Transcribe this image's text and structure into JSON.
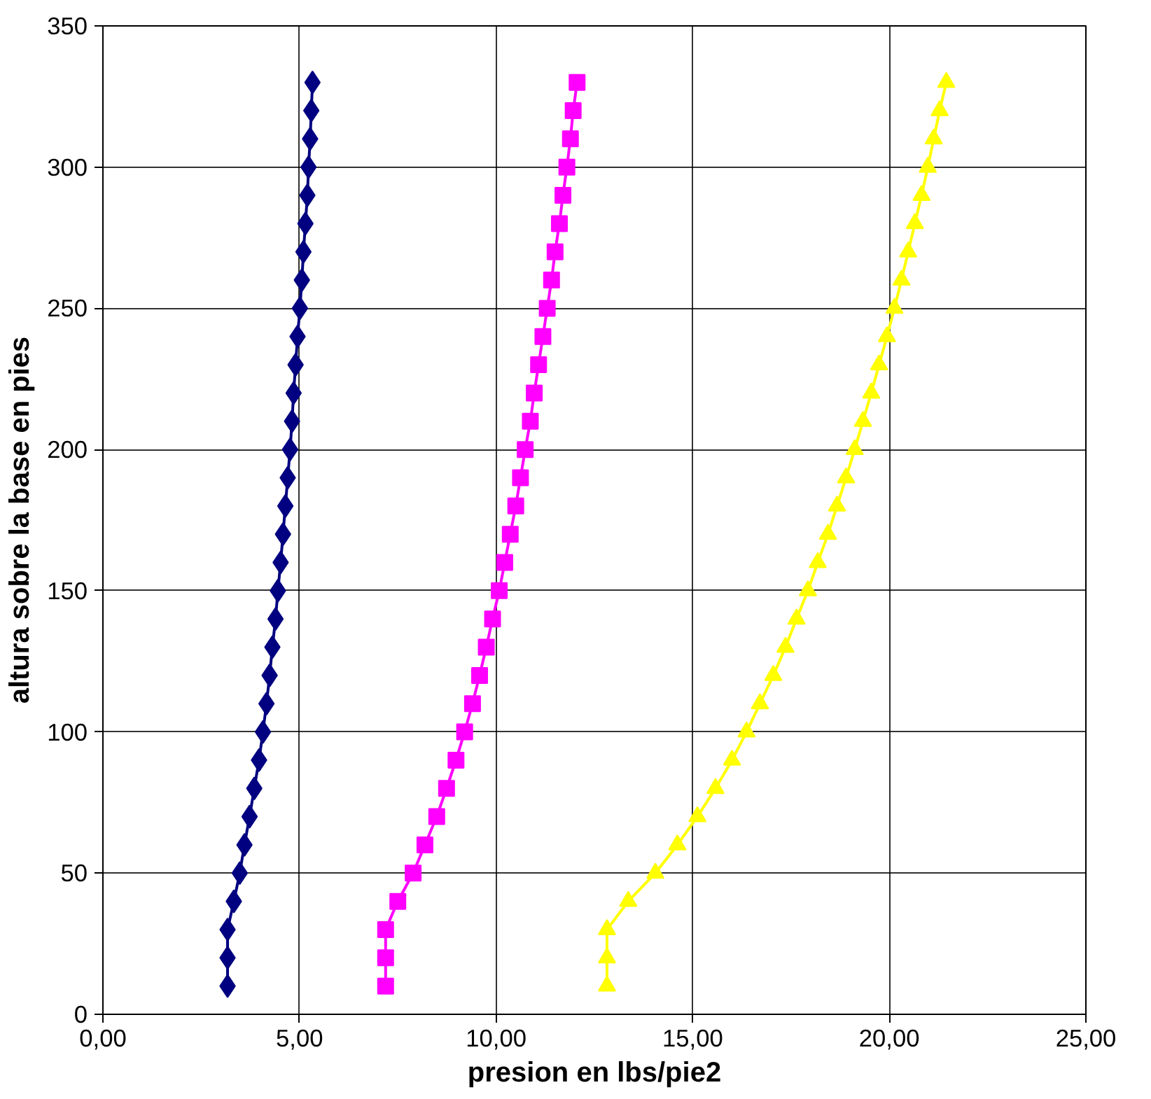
{
  "chart_data": {
    "type": "line",
    "xlabel": "presion en lbs/pie2",
    "ylabel": "altura sobre la base en pies",
    "xlim": [
      0,
      25
    ],
    "ylim": [
      0,
      350
    ],
    "xticks": [
      {
        "value": 0,
        "label": "0,00"
      },
      {
        "value": 5,
        "label": "5,00"
      },
      {
        "value": 10,
        "label": "10,00"
      },
      {
        "value": 15,
        "label": "15,00"
      },
      {
        "value": 20,
        "label": "20,00"
      },
      {
        "value": 25,
        "label": "25,00"
      }
    ],
    "yticks": [
      0,
      50,
      100,
      150,
      200,
      250,
      300,
      350
    ],
    "grid": true,
    "line_style": "solid",
    "series": [
      {
        "color": "#000080",
        "marker": "diamond",
        "x": [
          3.17,
          3.17,
          3.17,
          3.33,
          3.48,
          3.6,
          3.73,
          3.85,
          3.97,
          4.07,
          4.16,
          4.24,
          4.31,
          4.39,
          4.45,
          4.52,
          4.58,
          4.64,
          4.7,
          4.76,
          4.81,
          4.85,
          4.9,
          4.95,
          5.01,
          5.06,
          5.1,
          5.15,
          5.2,
          5.23,
          5.27,
          5.3,
          5.33
        ],
        "values": [
          10,
          20,
          30,
          40,
          50,
          60,
          70,
          80,
          90,
          100,
          110,
          120,
          130,
          140,
          150,
          160,
          170,
          180,
          190,
          200,
          210,
          220,
          230,
          240,
          250,
          260,
          270,
          280,
          290,
          300,
          310,
          320,
          330
        ]
      },
      {
        "color": "#ff00ff",
        "marker": "square",
        "x": [
          7.19,
          7.19,
          7.19,
          7.5,
          7.89,
          8.19,
          8.49,
          8.74,
          8.98,
          9.2,
          9.4,
          9.58,
          9.75,
          9.91,
          10.08,
          10.22,
          10.36,
          10.5,
          10.62,
          10.74,
          10.87,
          10.97,
          11.08,
          11.19,
          11.3,
          11.41,
          11.5,
          11.61,
          11.7,
          11.8,
          11.89,
          11.96,
          12.06
        ],
        "values": [
          10,
          20,
          30,
          40,
          50,
          60,
          70,
          80,
          90,
          100,
          110,
          120,
          130,
          140,
          150,
          160,
          170,
          180,
          190,
          200,
          210,
          220,
          230,
          240,
          250,
          260,
          270,
          280,
          290,
          300,
          310,
          320,
          330
        ]
      },
      {
        "color": "#ffff00",
        "marker": "triangle",
        "x": [
          12.82,
          12.82,
          12.82,
          13.36,
          14.05,
          14.61,
          15.12,
          15.58,
          16.0,
          16.37,
          16.71,
          17.05,
          17.36,
          17.64,
          17.93,
          18.18,
          18.44,
          18.67,
          18.9,
          19.12,
          19.33,
          19.54,
          19.74,
          19.94,
          20.13,
          20.31,
          20.48,
          20.65,
          20.82,
          20.98,
          21.13,
          21.28,
          21.45
        ],
        "values": [
          10,
          20,
          30,
          40,
          50,
          60,
          70,
          80,
          90,
          100,
          110,
          120,
          130,
          140,
          150,
          160,
          170,
          180,
          190,
          200,
          210,
          220,
          230,
          240,
          250,
          260,
          270,
          280,
          290,
          300,
          310,
          320,
          330
        ]
      }
    ]
  }
}
